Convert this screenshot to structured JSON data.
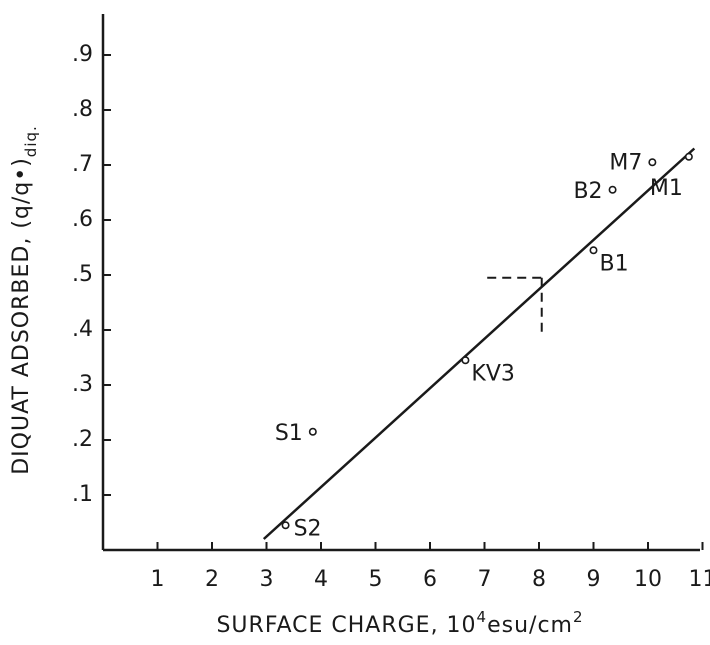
{
  "chart_data": {
    "type": "scatter",
    "xlabel": {
      "prefix": "SURFACE  CHARGE, 10",
      "sup": "4",
      "mid": "esu/cm",
      "sup2": "2"
    },
    "ylabel": {
      "main": "DIQUAT ADSORBED, (q/q•)",
      "sub": "diq."
    },
    "xlim": [
      0,
      11
    ],
    "ylim": [
      0,
      0.95
    ],
    "x_ticks": [
      1,
      2,
      3,
      4,
      5,
      6,
      7,
      8,
      9,
      10,
      11
    ],
    "x_tick_labels": [
      "1",
      "2",
      "3",
      "4",
      "5",
      "6",
      "7",
      "8",
      "9",
      "10",
      "11"
    ],
    "y_ticks": [
      0.1,
      0.2,
      0.3,
      0.4,
      0.5,
      0.6,
      0.7,
      0.8,
      0.9
    ],
    "y_tick_labels": [
      ".1",
      ".2",
      ".3",
      ".4",
      ".5",
      ".6",
      ".7",
      ".8",
      ".9"
    ],
    "points": [
      {
        "label": "S2",
        "x": 3.35,
        "y": 0.045
      },
      {
        "label": "S1",
        "x": 3.85,
        "y": 0.215
      },
      {
        "label": "KV3",
        "x": 6.65,
        "y": 0.345
      },
      {
        "label": "B1",
        "x": 9.0,
        "y": 0.545
      },
      {
        "label": "B2",
        "x": 9.35,
        "y": 0.655
      },
      {
        "label": "M7",
        "x": 10.08,
        "y": 0.705
      },
      {
        "label": "M1",
        "x": 10.75,
        "y": 0.715
      }
    ],
    "fit_line": {
      "x": [
        2.95,
        10.85
      ],
      "y": [
        0.02,
        0.73
      ]
    },
    "reference_lines": {
      "x": 8.05,
      "y": 0.495,
      "x_from": 7.05,
      "y_from": 0.39
    },
    "grid": false,
    "legend": "none"
  }
}
